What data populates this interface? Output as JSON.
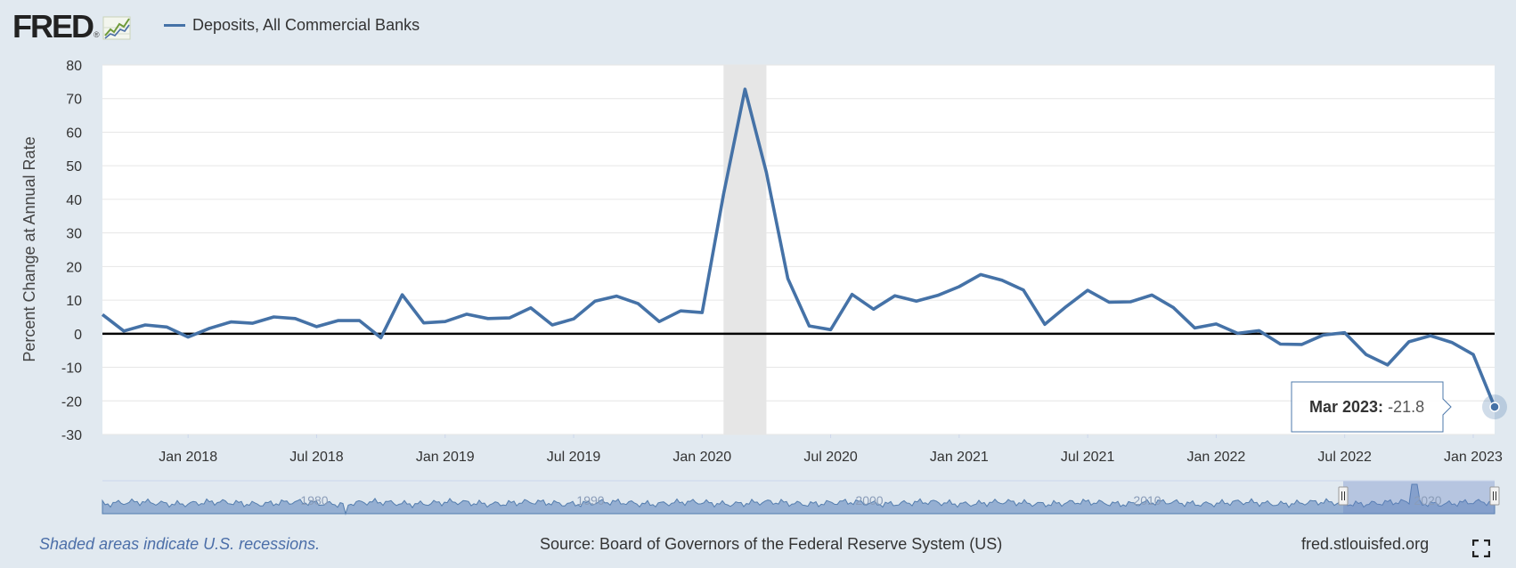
{
  "header": {
    "logo_text": "FRED",
    "logo_reg": "®",
    "legend_label": "Deposits, All Commercial Banks"
  },
  "footer": {
    "recession_note": "Shaded areas indicate U.S. recessions.",
    "source": "Source: Board of Governors of the Federal Reserve System (US)",
    "site": "fred.stlouisfed.org"
  },
  "colors": {
    "series": "#4572a7",
    "recession": "#e6e6e6",
    "background": "#e1e9f0"
  },
  "chart_data": {
    "type": "line",
    "ylabel": "Percent Change at Annual Rate",
    "ylim": [
      -30,
      80
    ],
    "yticks": [
      80,
      70,
      60,
      50,
      40,
      30,
      20,
      10,
      0,
      -10,
      -20,
      -30
    ],
    "x_tick_labels": [
      "Jan 2018",
      "Jul 2018",
      "Jan 2019",
      "Jul 2019",
      "Jan 2020",
      "Jul 2020",
      "Jan 2021",
      "Jul 2021",
      "Jan 2022",
      "Jul 2022",
      "Jan 2023"
    ],
    "x_start": "Sep 2017",
    "x_end": "Mar 2023",
    "recession": {
      "start": "Feb 2020",
      "end": "Apr 2020"
    },
    "series": [
      {
        "name": "Deposits, All Commercial Banks",
        "values": [
          5.7,
          0.8,
          2.6,
          2.0,
          -1.0,
          1.6,
          3.5,
          3.1,
          5.0,
          4.5,
          2.1,
          3.9,
          3.9,
          -1.2,
          11.6,
          3.2,
          3.6,
          5.8,
          4.5,
          4.7,
          7.7,
          2.6,
          4.4,
          9.7,
          11.2,
          9.0,
          3.6,
          6.8,
          6.3,
          41.5,
          72.8,
          48.0,
          16.4,
          2.3,
          1.2,
          11.7,
          7.3,
          11.3,
          9.7,
          11.4,
          14.0,
          17.6,
          15.9,
          13.0,
          2.8,
          8.1,
          12.9,
          9.4,
          9.5,
          11.5,
          7.8,
          1.7,
          2.9,
          0.1,
          0.9,
          -3.1,
          -3.2,
          -0.4,
          0.3,
          -6.2,
          -9.3,
          -2.4,
          -0.6,
          -2.6,
          -6.2,
          -21.8
        ]
      }
    ],
    "navigator_labels": [
      "1980",
      "1990",
      "2000",
      "2010",
      "2020"
    ],
    "tooltip": {
      "date": "Mar 2023:",
      "value": "-21.8"
    }
  }
}
